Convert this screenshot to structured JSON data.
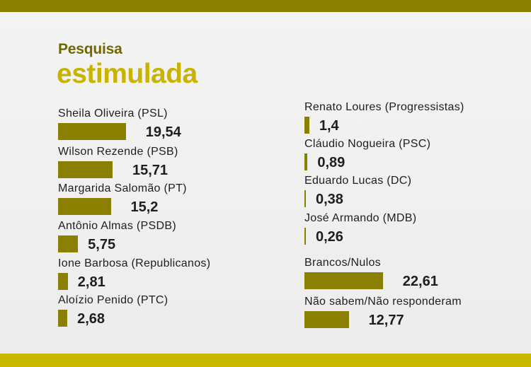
{
  "header": {
    "kicker": "Pesquisa",
    "headline": "estimulada"
  },
  "colors": {
    "bar": "#8a7f00",
    "top_band": "#8a8000",
    "bottom_band": "#c8b900",
    "headline": "#c8b400",
    "kicker": "#6f6800"
  },
  "chart_data": {
    "type": "bar",
    "orientation": "horizontal",
    "title": "Pesquisa estimulada",
    "categories": [
      "Sheila Oliveira (PSL)",
      "Wilson Rezende (PSB)",
      "Margarida Salomão (PT)",
      "Antônio Almas (PSDB)",
      "Ione Barbosa (Republicanos)",
      "Aloízio Penido (PTC)",
      "Renato Loures (Progressistas)",
      "Cláudio Nogueira (PSC)",
      "Eduardo Lucas (DC)",
      "José Armando (MDB)",
      "Brancos/Nulos",
      "Não sabem/Não responderam"
    ],
    "values": [
      19.54,
      15.71,
      15.2,
      5.75,
      2.81,
      2.68,
      1.4,
      0.89,
      0.38,
      0.26,
      22.61,
      12.77
    ],
    "labels": [
      "19,54",
      "15,71",
      "15,2",
      "5,75",
      "2,81",
      "2,68",
      "1,4",
      "0,89",
      "0,38",
      "0,26",
      "22,61",
      "12,77"
    ],
    "grid": false,
    "legend": "none"
  }
}
